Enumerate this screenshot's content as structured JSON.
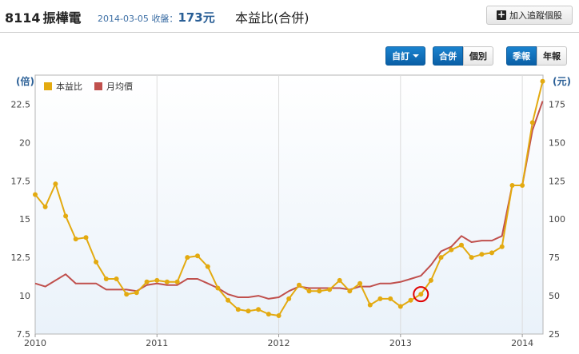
{
  "header": {
    "code": "8114",
    "name": "振樺電",
    "date": "2014-03-05",
    "close_label": "收盤：",
    "price": "173",
    "price_unit": "元",
    "report_title": "本益比(合併)",
    "tracking_label": "加入追蹤個股"
  },
  "toolbar": {
    "custom_label": "自訂",
    "consolidated_label": "合併",
    "individual_label": "個別",
    "quarterly_label": "季報",
    "annual_label": "年報"
  },
  "colors": {
    "pe_series": "#e3aa10",
    "price_series": "#c0504d",
    "accent_blue": "#2a5f96",
    "highlight": "#e00000"
  },
  "chart_data": {
    "type": "line",
    "left_axis": {
      "unit": "(倍)",
      "ticks": [
        "7.5",
        "10",
        "12.5",
        "15",
        "17.5",
        "20",
        "22.5"
      ],
      "range": [
        7.5,
        24.4
      ]
    },
    "right_axis": {
      "unit": "(元)",
      "ticks": [
        "25",
        "50",
        "75",
        "100",
        "125",
        "150",
        "175"
      ],
      "range": [
        25,
        194
      ]
    },
    "x_axis": {
      "ticks": [
        "2010",
        "2011",
        "2012",
        "2013",
        "2014"
      ],
      "range": [
        2010.0,
        2014.17
      ]
    },
    "legend_position": "top-left",
    "grid": "vertical",
    "series": [
      {
        "name": "本益比",
        "axis": "left",
        "color": "#e3aa10",
        "x": [
          2010.0,
          2010.083,
          2010.167,
          2010.25,
          2010.333,
          2010.417,
          2010.5,
          2010.583,
          2010.667,
          2010.75,
          2010.833,
          2010.917,
          2011.0,
          2011.083,
          2011.167,
          2011.25,
          2011.333,
          2011.417,
          2011.5,
          2011.583,
          2011.667,
          2011.75,
          2011.833,
          2011.917,
          2012.0,
          2012.083,
          2012.167,
          2012.25,
          2012.333,
          2012.417,
          2012.5,
          2012.583,
          2012.667,
          2012.75,
          2012.833,
          2012.917,
          2013.0,
          2013.083,
          2013.167,
          2013.25,
          2013.333,
          2013.417,
          2013.5,
          2013.583,
          2013.667,
          2013.75,
          2013.833,
          2013.917,
          2014.0,
          2014.083,
          2014.167
        ],
        "values": [
          16.6,
          15.8,
          17.3,
          15.2,
          13.7,
          13.8,
          12.2,
          11.1,
          11.1,
          10.1,
          10.2,
          10.9,
          11.0,
          10.9,
          10.9,
          12.5,
          12.6,
          11.9,
          10.5,
          9.7,
          9.1,
          9.0,
          9.1,
          8.8,
          8.7,
          9.8,
          10.7,
          10.3,
          10.3,
          10.4,
          11.0,
          10.3,
          10.8,
          9.4,
          9.8,
          9.8,
          9.3,
          9.7,
          10.1,
          11.0,
          12.5,
          13.0,
          13.3,
          12.5,
          12.7,
          12.8,
          13.2,
          17.2,
          17.2,
          21.3,
          24.0
        ]
      },
      {
        "name": "月均價",
        "axis": "right",
        "color": "#c0504d",
        "x": [
          2010.0,
          2010.083,
          2010.167,
          2010.25,
          2010.333,
          2010.417,
          2010.5,
          2010.583,
          2010.667,
          2010.75,
          2010.833,
          2010.917,
          2011.0,
          2011.083,
          2011.167,
          2011.25,
          2011.333,
          2011.417,
          2011.5,
          2011.583,
          2011.667,
          2011.75,
          2011.833,
          2011.917,
          2012.0,
          2012.083,
          2012.167,
          2012.25,
          2012.333,
          2012.417,
          2012.5,
          2012.583,
          2012.667,
          2012.75,
          2012.833,
          2012.917,
          2013.0,
          2013.083,
          2013.167,
          2013.25,
          2013.333,
          2013.417,
          2013.5,
          2013.583,
          2013.667,
          2013.75,
          2013.833,
          2013.917,
          2014.0,
          2014.083,
          2014.167
        ],
        "values": [
          58,
          56,
          60,
          64,
          58,
          58,
          58,
          54,
          54,
          54,
          53,
          57,
          58,
          57,
          57,
          61,
          61,
          58,
          55,
          51,
          49,
          49,
          50,
          48,
          49,
          53,
          56,
          55,
          55,
          55,
          55,
          54,
          56,
          56,
          58,
          58,
          59,
          61,
          63,
          70,
          79,
          82,
          89,
          85,
          86,
          86,
          89,
          122,
          122,
          158,
          177
        ]
      }
    ],
    "highlight": {
      "x": 2013.167,
      "y": 10.1
    }
  }
}
